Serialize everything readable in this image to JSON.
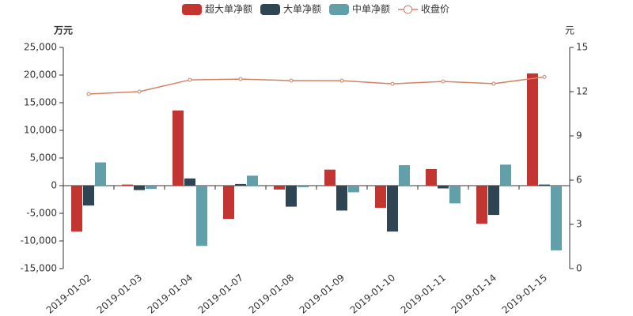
{
  "chart_data": {
    "type": "bar",
    "categories": [
      "2019-01-02",
      "2019-01-03",
      "2019-01-04",
      "2019-01-07",
      "2019-01-08",
      "2019-01-09",
      "2019-01-10",
      "2019-01-11",
      "2019-01-14",
      "2019-01-15"
    ],
    "series": [
      {
        "name": "超大单净额",
        "color": "#c23531",
        "values": [
          -8300,
          200,
          13600,
          -6000,
          -700,
          2900,
          -4000,
          3000,
          -6900,
          20300
        ]
      },
      {
        "name": "大单净额",
        "color": "#2f4554",
        "values": [
          -3600,
          -800,
          1300,
          300,
          -3800,
          -4500,
          -8300,
          -500,
          -5300,
          200
        ]
      },
      {
        "name": "中单净额",
        "color": "#61a0a8",
        "values": [
          4200,
          -600,
          -10900,
          1800,
          -300,
          -1200,
          3700,
          -3200,
          3800,
          -11700
        ]
      },
      {
        "name": "收盘价",
        "color": "#d48265",
        "type": "line",
        "axis": "y2",
        "values": [
          11.84,
          12.0,
          12.8,
          12.85,
          12.75,
          12.74,
          12.53,
          12.69,
          12.54,
          13.0
        ]
      }
    ],
    "y_label": "万元",
    "y2_label": "元",
    "ylim": [
      -15000,
      25000
    ],
    "yticks": [
      {
        "value": -15000,
        "label": "-15,000"
      },
      {
        "value": -10000,
        "label": "-10,000"
      },
      {
        "value": -5000,
        "label": "-5,000"
      },
      0,
      {
        "value": 5000,
        "label": "5,000"
      },
      {
        "value": 10000,
        "label": "10,000"
      },
      {
        "value": 15000,
        "label": "15,000"
      },
      {
        "value": 20000,
        "label": "20,000"
      },
      {
        "value": 25000,
        "label": "25,000"
      }
    ],
    "y2lim": [
      0,
      15
    ],
    "y2ticks": [
      0,
      3,
      6,
      9,
      12,
      15
    ],
    "legend": "top"
  }
}
